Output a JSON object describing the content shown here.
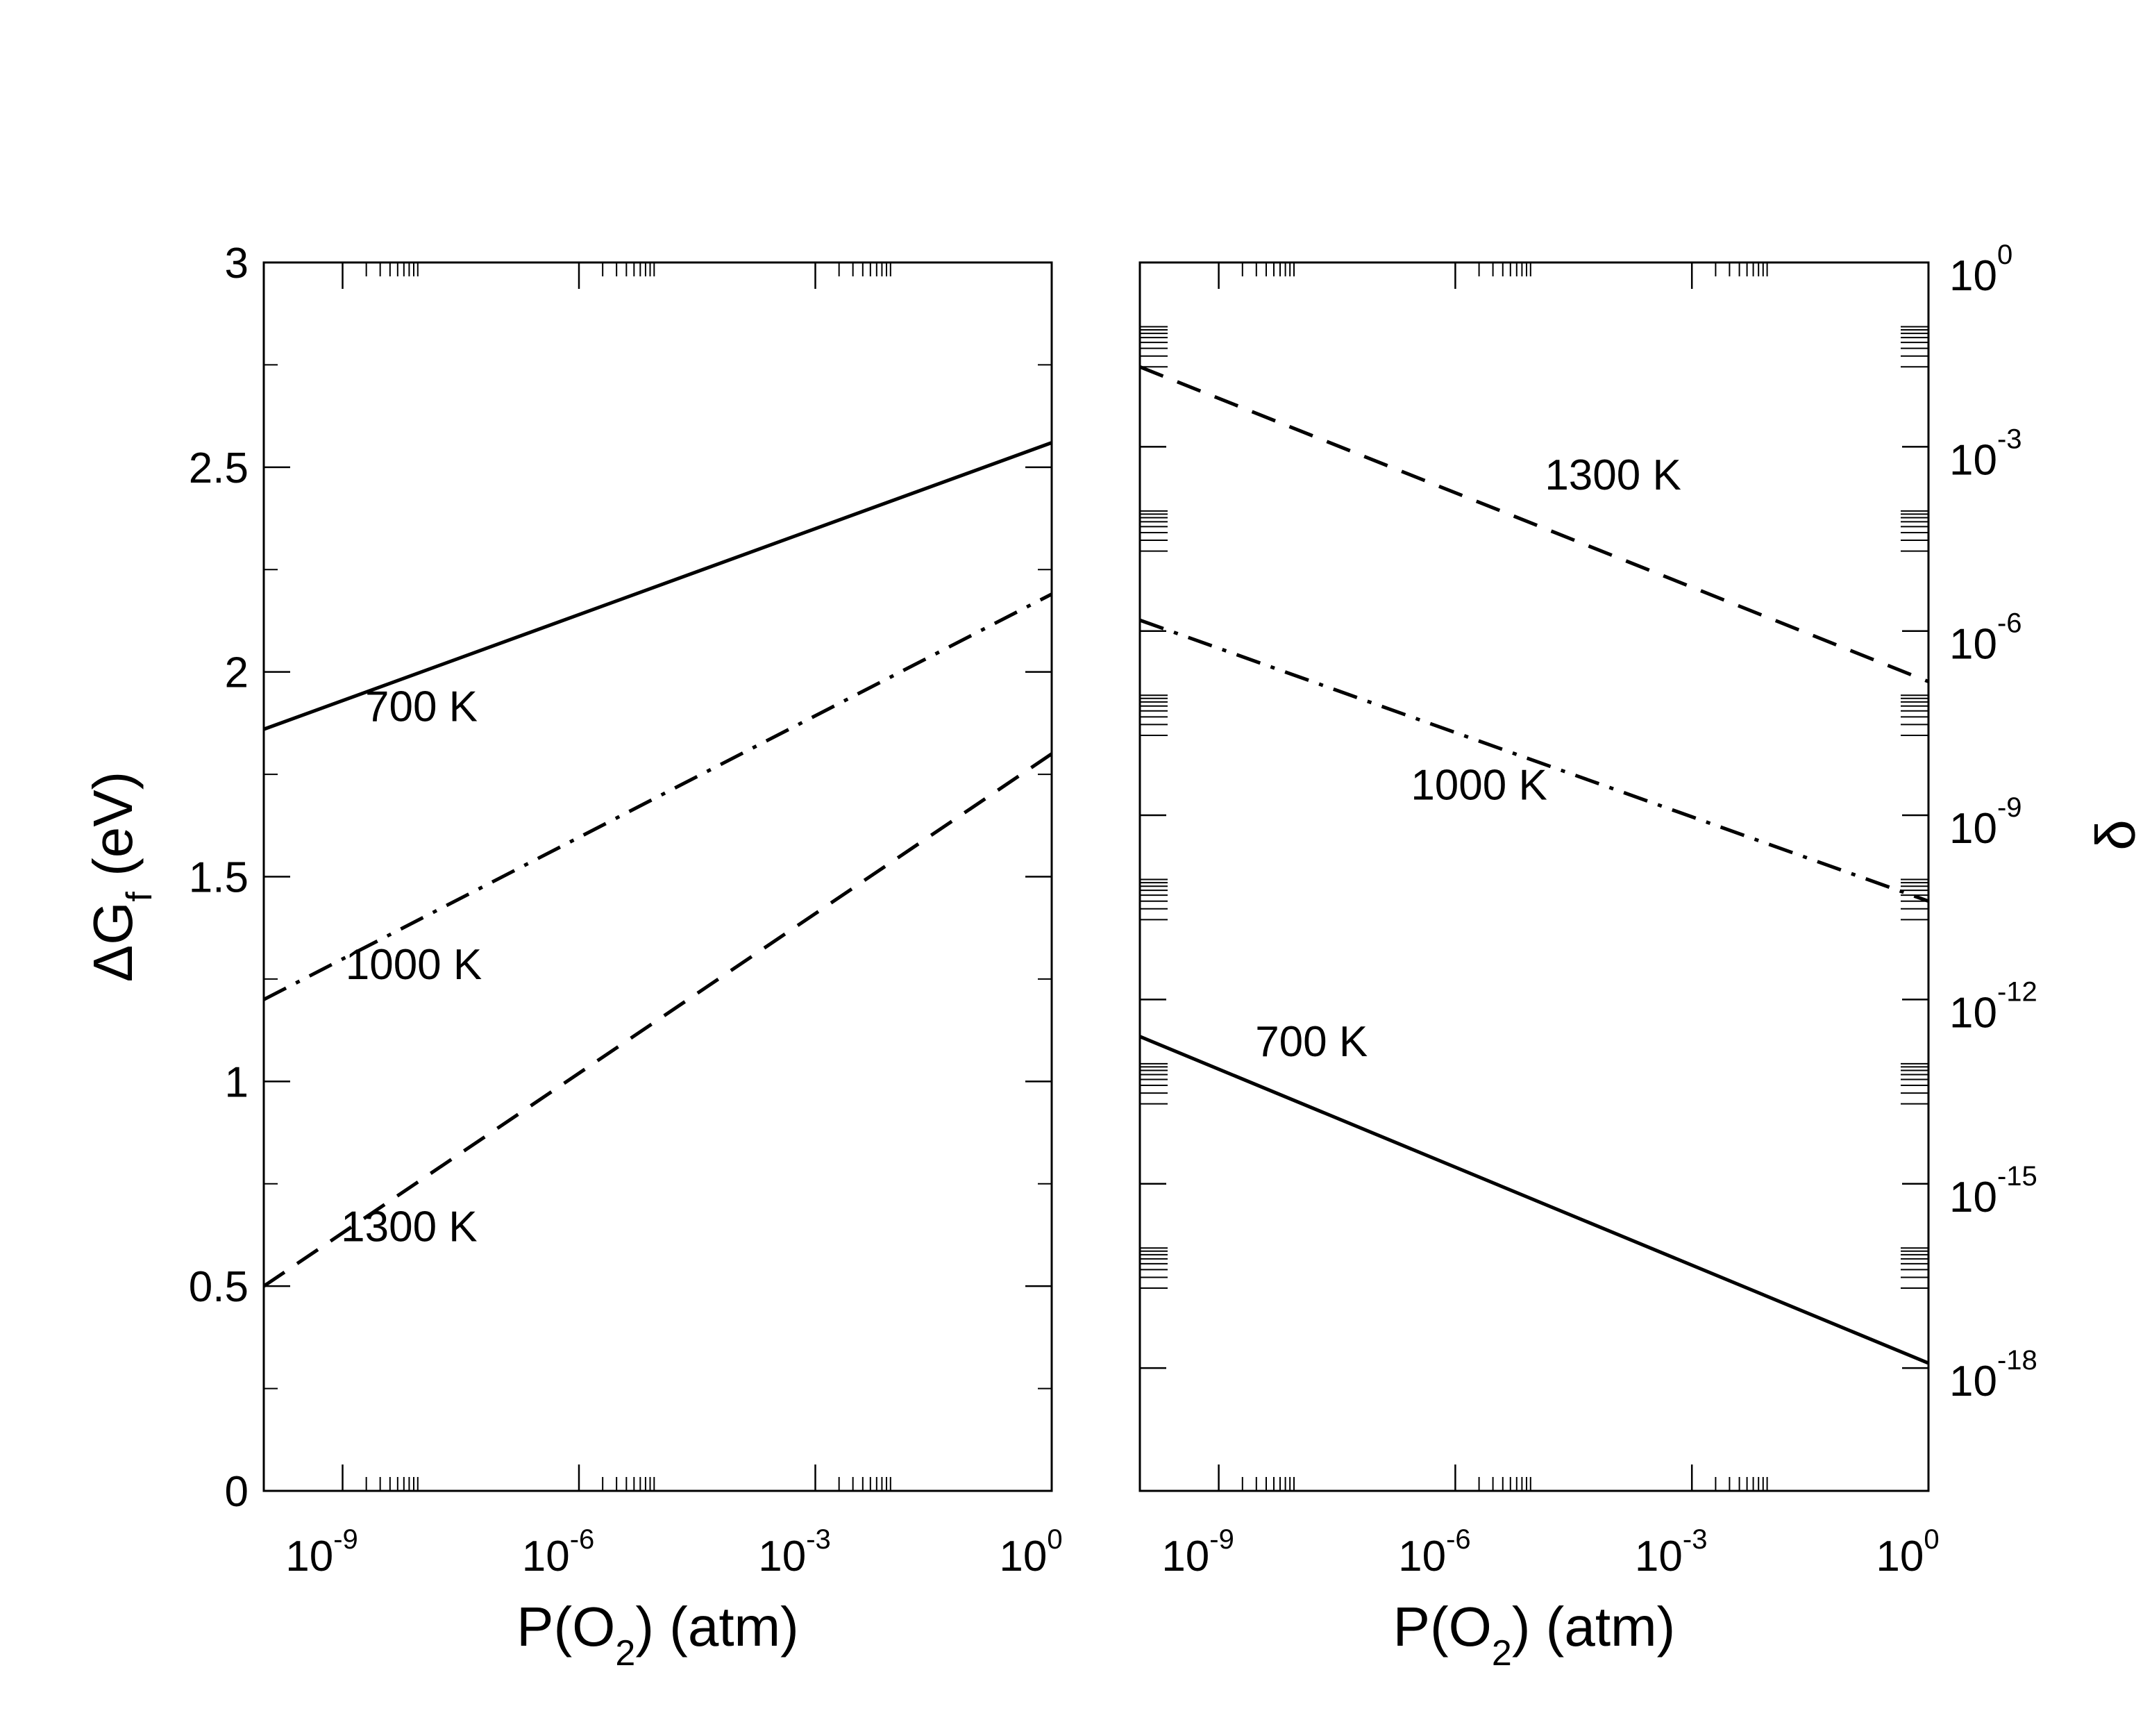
{
  "chart_data": [
    {
      "type": "line",
      "panel": "left",
      "xlabel": {
        "base": "P(O",
        "sub": "2",
        "tail": ") (atm)"
      },
      "ylabel": {
        "base": "ΔG",
        "sub": "f",
        "tail": " (eV)"
      },
      "x_scale": "log",
      "xlim": [
        1e-10,
        1
      ],
      "ylim": [
        0,
        3
      ],
      "x_ticks": [
        {
          "value": 1e-09,
          "base": "10",
          "exp": "-9"
        },
        {
          "value": 1e-06,
          "base": "10",
          "exp": "-6"
        },
        {
          "value": 0.001,
          "base": "10",
          "exp": "-3"
        },
        {
          "value": 1,
          "base": "10",
          "exp": "0"
        }
      ],
      "y_ticks": [
        {
          "value": 0,
          "label": "0"
        },
        {
          "value": 0.5,
          "label": "0.5"
        },
        {
          "value": 1,
          "label": "1"
        },
        {
          "value": 1.5,
          "label": "1.5"
        },
        {
          "value": 2,
          "label": "2"
        },
        {
          "value": 2.5,
          "label": "2.5"
        },
        {
          "value": 3,
          "label": "3"
        }
      ],
      "series": [
        {
          "name": "700 K",
          "style": "solid",
          "x": [
            1e-10,
            1
          ],
          "y": [
            1.86,
            2.56
          ],
          "label_at": [
            1e-08,
            1.88
          ]
        },
        {
          "name": "1000 K",
          "style": "dashdot",
          "x": [
            1e-10,
            1
          ],
          "y": [
            1.2,
            2.19
          ],
          "label_at": [
            8e-09,
            1.25
          ]
        },
        {
          "name": "1300 K",
          "style": "dashed",
          "x": [
            1e-10,
            1
          ],
          "y": [
            0.5,
            1.8
          ],
          "label_at": [
            7e-09,
            0.61
          ]
        }
      ]
    },
    {
      "type": "line",
      "panel": "right",
      "xlabel": {
        "base": "P(O",
        "sub": "2",
        "tail": ") (atm)"
      },
      "ylabel": {
        "base": "δ"
      },
      "x_scale": "log",
      "y_scale": "log",
      "xlim": [
        1e-10,
        1
      ],
      "ylim": [
        1e-20,
        1
      ],
      "x_ticks": [
        {
          "value": 1e-09,
          "base": "10",
          "exp": "-9"
        },
        {
          "value": 1e-06,
          "base": "10",
          "exp": "-6"
        },
        {
          "value": 0.001,
          "base": "10",
          "exp": "-3"
        },
        {
          "value": 1,
          "base": "10",
          "exp": "0"
        }
      ],
      "y_ticks": [
        {
          "value": 1,
          "base": "10",
          "exp": "0"
        },
        {
          "value": 0.001,
          "base": "10",
          "exp": "-3"
        },
        {
          "value": 1e-06,
          "base": "10",
          "exp": "-6"
        },
        {
          "value": 1e-09,
          "base": "10",
          "exp": "-9"
        },
        {
          "value": 1e-12,
          "base": "10",
          "exp": "-12"
        },
        {
          "value": 1e-15,
          "base": "10",
          "exp": "-15"
        },
        {
          "value": 1e-18,
          "base": "10",
          "exp": "-18"
        }
      ],
      "series": [
        {
          "name": "1300 K",
          "style": "dashed",
          "x": [
            1e-10,
            1
          ],
          "y": [
            0.02,
            1.5e-07
          ],
          "label_at": [
            0.0001,
            0.0002
          ]
        },
        {
          "name": "1000 K",
          "style": "dashdot",
          "x": [
            1e-10,
            1
          ],
          "y": [
            1.5e-06,
            4e-11
          ],
          "label_at": [
            2e-06,
            1.8e-09
          ]
        },
        {
          "name": "700 K",
          "style": "solid",
          "x": [
            1e-10,
            1
          ],
          "y": [
            2.5e-13,
            1.2e-18
          ],
          "label_at": [
            1.5e-08,
            1.2e-13
          ]
        }
      ]
    }
  ]
}
